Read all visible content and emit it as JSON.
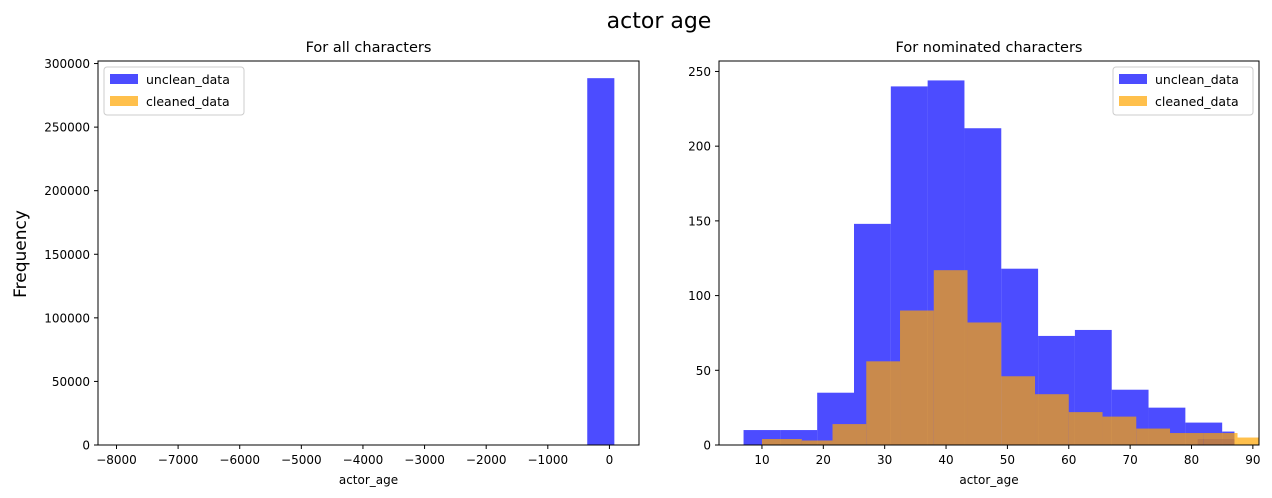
{
  "figure": {
    "title": "actor age",
    "ylabel": "Frequency"
  },
  "colors": {
    "unclean": "#0000ff",
    "cleaned": "#ffa500",
    "unclean_alpha": 0.7,
    "cleaned_alpha": 0.7
  },
  "chart_data": [
    {
      "type": "bar",
      "subtype": "histogram",
      "title": "For all characters",
      "xlabel": "actor_age",
      "ylabel": "Frequency",
      "xlim": [
        -8300,
        480
      ],
      "ylim": [
        0,
        302000
      ],
      "xticks": [
        -8000,
        -7000,
        -6000,
        -5000,
        -4000,
        -3000,
        -2000,
        -1000,
        0
      ],
      "yticks": [
        0,
        50000,
        100000,
        150000,
        200000,
        250000,
        300000
      ],
      "legend_position": "upper left",
      "series": [
        {
          "name": "unclean_data",
          "bins": [
            [
              -360,
              80,
              288500
            ]
          ]
        },
        {
          "name": "cleaned_data",
          "bins": []
        }
      ]
    },
    {
      "type": "bar",
      "subtype": "histogram",
      "title": "For nominated characters",
      "xlabel": "actor_age",
      "ylabel": "",
      "xlim": [
        3,
        91
      ],
      "ylim": [
        0,
        257
      ],
      "xticks": [
        10,
        20,
        30,
        40,
        50,
        60,
        70,
        80,
        90
      ],
      "yticks": [
        0,
        50,
        100,
        150,
        200,
        250
      ],
      "legend_position": "upper right",
      "series": [
        {
          "name": "unclean_data",
          "bins": [
            [
              7,
              13,
              10
            ],
            [
              13,
              19,
              10
            ],
            [
              19,
              25,
              35
            ],
            [
              25,
              31,
              148
            ],
            [
              31,
              37,
              240
            ],
            [
              37,
              43,
              244
            ],
            [
              43,
              49,
              212
            ],
            [
              49,
              55,
              118
            ],
            [
              55,
              61,
              73
            ],
            [
              61,
              67,
              77
            ],
            [
              67,
              73,
              37
            ],
            [
              73,
              79,
              25
            ],
            [
              79,
              85,
              15
            ],
            [
              85,
              87,
              9
            ],
            [
              81,
              87,
              4
            ]
          ]
        },
        {
          "name": "cleaned_data",
          "bins": [
            [
              10,
              16.5,
              4
            ],
            [
              16.5,
              21.5,
              3
            ],
            [
              21.5,
              27,
              14
            ],
            [
              27,
              32.5,
              56
            ],
            [
              32.5,
              38,
              90
            ],
            [
              38,
              43.5,
              117
            ],
            [
              43.5,
              49,
              82
            ],
            [
              49,
              54.5,
              46
            ],
            [
              54.5,
              60,
              34
            ],
            [
              60,
              65.5,
              22
            ],
            [
              65.5,
              71,
              19
            ],
            [
              71,
              76.5,
              11
            ],
            [
              76.5,
              82,
              8
            ],
            [
              82,
              87.5,
              8
            ],
            [
              87.5,
              91,
              5
            ]
          ]
        }
      ]
    }
  ]
}
